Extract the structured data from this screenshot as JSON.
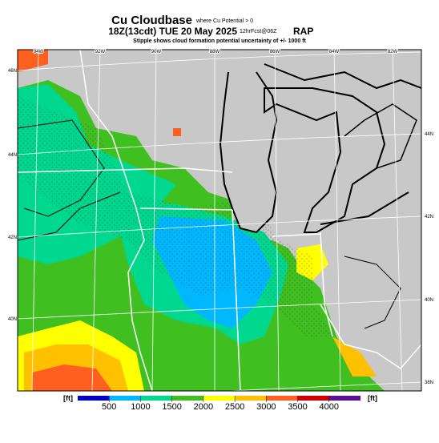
{
  "header": {
    "title": "Cu Cloudbase",
    "title_note": "where Cu Potential > 0",
    "subtitle": "18Z(13cdt) TUE 20 May 2025",
    "subtitle_note": "12hrFcst@06Z",
    "model": "RAP",
    "caption": "Stipple shows cloud formation potential uncertainty of +/- 1000 ft"
  },
  "map": {
    "lon_labels": [
      "94W",
      "92W",
      "90W",
      "88W",
      "86W",
      "84W",
      "82W"
    ],
    "lat_labels_left": [
      "46N",
      "44N",
      "42N",
      "40N"
    ],
    "lat_labels_right": [
      "44N",
      "42N",
      "40N",
      "38N"
    ]
  },
  "colorbar": {
    "unit_left": "[ft]",
    "unit_right": "[ft]",
    "range": [
      0,
      4500
    ],
    "ticks": [
      500,
      1000,
      1500,
      2000,
      2500,
      3000,
      3500,
      4000
    ],
    "colors": [
      "#0000c8",
      "#00b8ff",
      "#00d890",
      "#40c020",
      "#ffff00",
      "#ffc000",
      "#ff6020",
      "#d00000",
      "#5a1090"
    ]
  }
}
